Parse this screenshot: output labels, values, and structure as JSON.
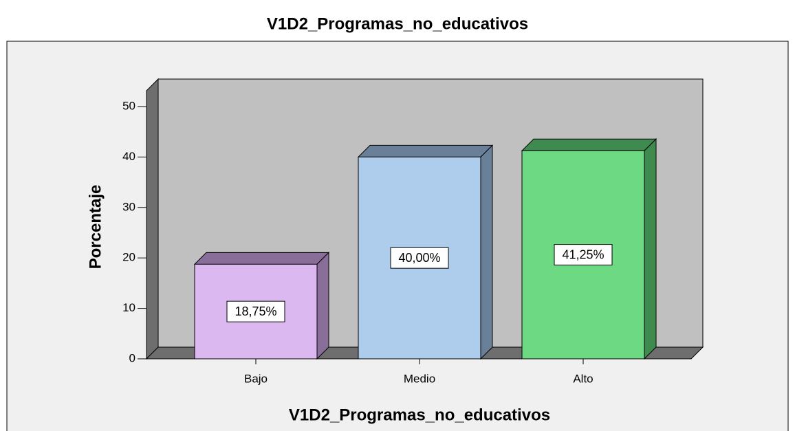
{
  "chart_data": {
    "type": "bar3d",
    "title": "V1D2_Programas_no_educativos",
    "xlabel": "V1D2_Programas_no_educativos",
    "ylabel": "Porcentaje",
    "categories": [
      "Bajo",
      "Medio",
      "Alto"
    ],
    "values": [
      18.75,
      40.0,
      41.25
    ],
    "value_labels": [
      "18,75%",
      "40,00%",
      "41,25%"
    ],
    "colors": [
      "#dcb8f0",
      "#aecdec",
      "#6ed983"
    ],
    "side_colors": [
      "#8a6e9a",
      "#6a8099",
      "#3f8a4f"
    ],
    "ylim": [
      0,
      50
    ],
    "yticks": [
      0,
      10,
      20,
      30,
      40,
      50
    ]
  }
}
